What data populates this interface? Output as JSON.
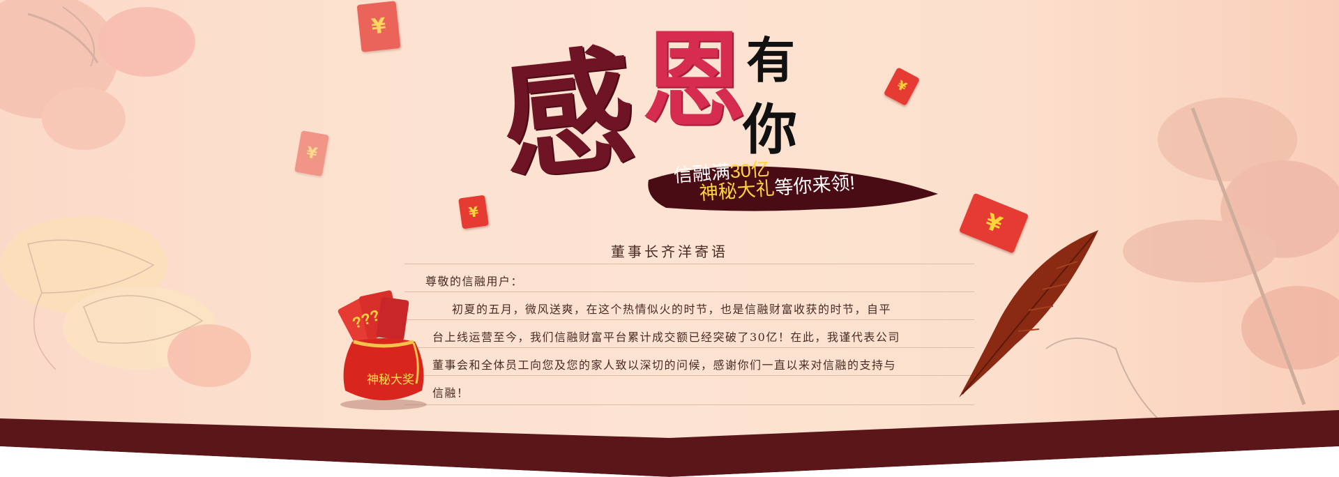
{
  "headline": {
    "char_1": "感",
    "char_2": "恩",
    "char_3": "有",
    "char_4": "你"
  },
  "slogan": {
    "line1_prefix": "信融满",
    "line1_highlight": "30亿",
    "line2_highlight": "神秘大礼",
    "line2_suffix": "等你来领!"
  },
  "letter": {
    "title": "董事长齐洋寄语",
    "greeting": "尊敬的信融用户：",
    "lines": [
      "初夏的五月，微风送爽，在这个热情似火的时节，也是信融财富收获的时节，自平",
      "台上线运营至今，我们信融财富平台累计成交额已经突破了30亿！在此，我谨代表公司",
      "董事会和全体员工向您及您的家人致以深切的问候，感谢你们一直以来对信融的支持与",
      "信融！"
    ]
  },
  "prize_bag": {
    "label": "神秘大奖",
    "card_text": "???"
  },
  "envelope_symbol": "¥",
  "colors": {
    "background": "#fce1cf",
    "headline_dark": "#6e1424",
    "headline_red": "#d62c4f",
    "highlight_yellow": "#ffd43b",
    "envelope_red": "#e53b32",
    "bottom_band": "#5a1619"
  }
}
